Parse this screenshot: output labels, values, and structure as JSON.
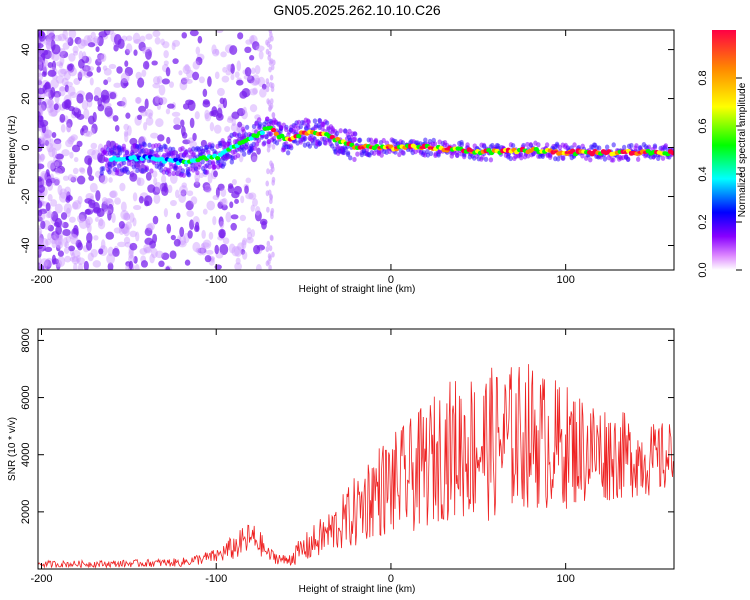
{
  "title": "GN05.2025.262.10.10.C26",
  "chart_data": [
    {
      "type": "heatmap",
      "xlabel": "Height of straight line (km)",
      "ylabel": "Frequency (Hz)",
      "xlim": [
        -202,
        162
      ],
      "ylim": [
        -50,
        48
      ],
      "xticks": [
        -200,
        -100,
        0,
        100
      ],
      "xtick_labels": [
        "-200",
        "-100",
        "0",
        "100"
      ],
      "yticks": [
        -40,
        -20,
        0,
        20,
        40
      ],
      "ytick_labels": [
        "-40",
        "-20",
        "0",
        "20",
        "40"
      ],
      "ridge": {
        "x": [
          -160,
          -140,
          -120,
          -100,
          -90,
          -80,
          -70,
          -60,
          -50,
          -40,
          -30,
          -20,
          0,
          20,
          40,
          60,
          80,
          100,
          120,
          140,
          160
        ],
        "frequency_hz": [
          -5,
          -4,
          -6,
          -4,
          0,
          4,
          8,
          3,
          6,
          6,
          3,
          0,
          0,
          0,
          -1,
          -2,
          -1,
          -2,
          -2,
          -2,
          -2
        ]
      },
      "colorbar": {
        "label": "Normalized spectral amplitude",
        "range": [
          0.0,
          1.0
        ],
        "ticks": [
          0.0,
          0.2,
          0.4,
          0.6,
          0.8
        ],
        "tick_labels": [
          "0.0",
          "0.2",
          "0.4",
          "0.6",
          "0.8"
        ],
        "colors": [
          "#ffffff",
          "#dd88ff",
          "#8800ff",
          "#0000ff",
          "#00ffff",
          "#00ff00",
          "#ffff00",
          "#ff8800",
          "#ff0044"
        ]
      }
    },
    {
      "type": "line",
      "xlabel": "Height of straight line (km)",
      "ylabel": "SNR (10 * v/v)",
      "xlim": [
        -202,
        162
      ],
      "ylim": [
        0,
        8400
      ],
      "xticks": [
        -200,
        -100,
        0,
        100
      ],
      "xtick_labels": [
        "-200",
        "-100",
        "0",
        "100"
      ],
      "yticks": [
        2000,
        4000,
        6000,
        8000
      ],
      "ytick_labels": [
        "2000",
        "4000",
        "6000",
        "8000"
      ],
      "line_color": "#ee2222",
      "series": [
        {
          "name": "SNR",
          "envelope_x": [
            -202,
            -160,
            -120,
            -100,
            -90,
            -80,
            -75,
            -70,
            -60,
            -50,
            -40,
            -30,
            -20,
            -10,
            0,
            10,
            20,
            30,
            40,
            50,
            60,
            70,
            80,
            90,
            100,
            110,
            120,
            130,
            140,
            150,
            160
          ],
          "envelope_mean": [
            170,
            180,
            230,
            450,
            750,
            1100,
            900,
            500,
            280,
            700,
            1100,
            1500,
            2000,
            2700,
            2900,
            3200,
            3600,
            4100,
            4300,
            4300,
            4400,
            4600,
            4700,
            4400,
            4300,
            4200,
            4100,
            4000,
            3900,
            3800,
            3900
          ],
          "envelope_spread": [
            120,
            120,
            150,
            250,
            450,
            600,
            450,
            250,
            200,
            500,
            700,
            900,
            1300,
            1600,
            1800,
            2000,
            2200,
            2400,
            2600,
            2700,
            2700,
            2600,
            2600,
            2400,
            2200,
            2000,
            1800,
            1600,
            1400,
            1300,
            1300
          ]
        }
      ]
    }
  ]
}
